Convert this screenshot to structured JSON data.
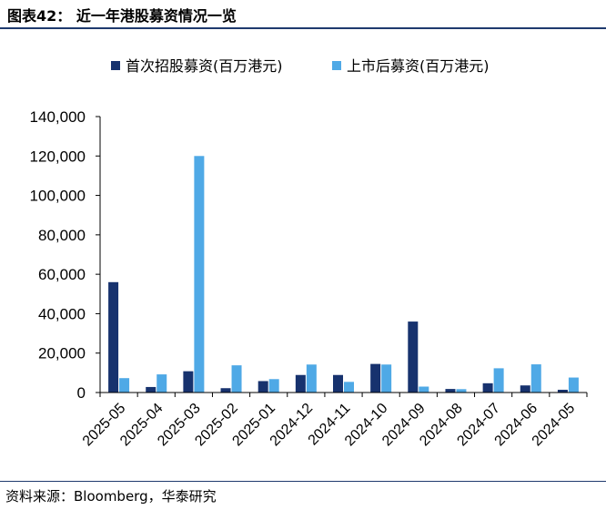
{
  "header": {
    "title": "图表42：  近一年港股募资情况一览"
  },
  "footer": {
    "source": "资料来源：Bloomberg，华泰研究"
  },
  "chart_data": {
    "type": "bar",
    "categories": [
      "2025-05",
      "2025-04",
      "2025-03",
      "2025-02",
      "2025-01",
      "2024-12",
      "2024-11",
      "2024-10",
      "2024-09",
      "2024-08",
      "2024-07",
      "2024-06",
      "2024-05"
    ],
    "series": [
      {
        "name": "首次招股募资(百万港元)",
        "color": "#17326e",
        "values": [
          56000,
          2800,
          10800,
          2200,
          5800,
          8900,
          8900,
          14500,
          36000,
          1800,
          4700,
          3600,
          1400
        ]
      },
      {
        "name": "上市后募资(百万港元)",
        "color": "#4fa9e6",
        "values": [
          7300,
          9200,
          120000,
          13800,
          6800,
          14200,
          5400,
          14200,
          3000,
          1700,
          12300,
          14300,
          7600
        ]
      }
    ],
    "yticks": [
      "0",
      "20,000",
      "40,000",
      "60,000",
      "80,000",
      "100,000",
      "120,000",
      "140,000"
    ],
    "ylim": [
      0,
      140000
    ],
    "grid": false,
    "legend": "top"
  }
}
